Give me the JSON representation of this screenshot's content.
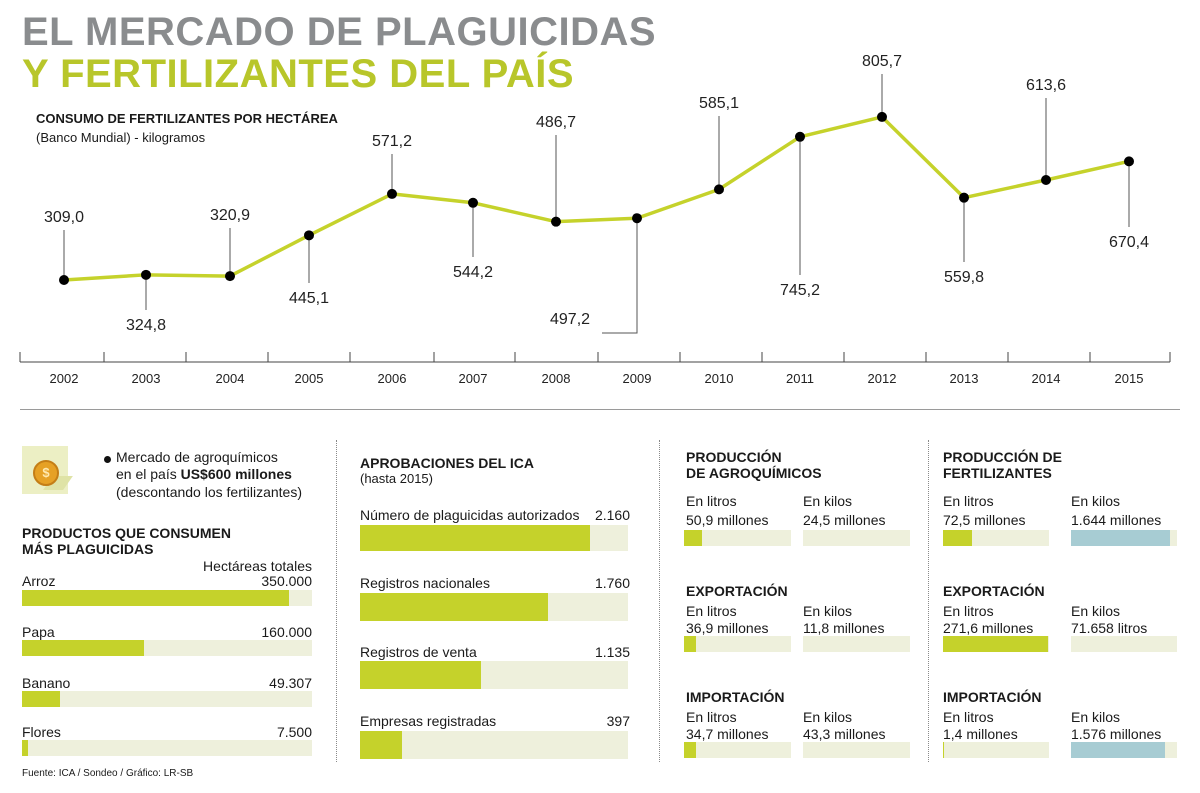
{
  "title_line1": "EL MERCADO DE PLAGUICIDAS",
  "title_line2": "Y FERTILIZANTES DEL PAÍS",
  "chart_data": {
    "type": "line",
    "title": "CONSUMO DE FERTILIZANTES POR HECTÁREA",
    "subtitle": "(Banco Mundial) - kilogramos",
    "x": [
      "2002",
      "2003",
      "2004",
      "2005",
      "2006",
      "2007",
      "2008",
      "2009",
      "2010",
      "2011",
      "2012",
      "2013",
      "2014",
      "2015"
    ],
    "values": [
      309.0,
      324.8,
      320.9,
      445.1,
      571.2,
      544.2,
      486.7,
      497.2,
      585.1,
      745.2,
      805.7,
      559.8,
      613.6,
      670.4
    ],
    "labels": [
      "309,0",
      "324,8",
      "320,9",
      "445,1",
      "571,2",
      "544,2",
      "486,7",
      "497,2",
      "585,1",
      "745,2",
      "805,7",
      "559,8",
      "613,6",
      "670,4"
    ],
    "line_color": "#c5d22b",
    "point_color": "#000000"
  },
  "market": {
    "line1": "Mercado de agroquímicos",
    "line2_prefix": "en el país ",
    "line2_bold": "US$600 millones",
    "line3": "(descontando los fertilizantes)",
    "icon": "coin-icon"
  },
  "crops": {
    "title_line1": "PRODUCTOS QUE CONSUMEN",
    "title_line2": "MÁS PLAGUICIDAS",
    "column_header": "Hectáreas totales",
    "items": [
      {
        "name": "Arroz",
        "value_label": "350.000",
        "value": 350000
      },
      {
        "name": "Papa",
        "value_label": "160.000",
        "value": 160000
      },
      {
        "name": "Banano",
        "value_label": "49.307",
        "value": 49307
      },
      {
        "name": "Flores",
        "value_label": "7.500",
        "value": 7500
      }
    ]
  },
  "ica": {
    "title": "APROBACIONES DEL ICA",
    "subtitle": "(hasta 2015)",
    "items": [
      {
        "name": "Número de plaguicidas autorizados",
        "value_label": "2.160",
        "value": 2160
      },
      {
        "name": "Registros nacionales",
        "value_label": "1.760",
        "value": 1760
      },
      {
        "name": "Registros de venta",
        "value_label": "1.135",
        "value": 1135
      },
      {
        "name": "Empresas registradas",
        "value_label": "397",
        "value": 397
      }
    ]
  },
  "agro": {
    "title_line1": "PRODUCCIÓN",
    "title_line2": "DE AGROQUÍMICOS",
    "litros_label": "En litros",
    "kilos_label": "En kilos",
    "litros_value": "50,9 millones",
    "kilos_value": "24,5 millones",
    "litros_fill": 0.17,
    "kilos_fill": 0.0,
    "export_title": "EXPORTACIÓN",
    "export_litros_value": "36,9 millones",
    "export_kilos_value": "11,8 millones",
    "export_litros_fill": 0.11,
    "export_kilos_fill": 0.0,
    "import_title": "IMPORTACIÓN",
    "import_litros_value": "34,7 millones",
    "import_kilos_value": "43,3 millones",
    "import_litros_fill": 0.11,
    "import_kilos_fill": 0.0
  },
  "fert": {
    "title_line1": "PRODUCCIÓN DE",
    "title_line2": "FERTILIZANTES",
    "litros_label": "En litros",
    "kilos_label": "En kilos",
    "litros_value": "72,5 millones",
    "kilos_value": "1.644 millones",
    "litros_fill": 0.27,
    "kilos_fill": 0.93,
    "export_title": "EXPORTACIÓN",
    "export_litros_value": "271,6 millones",
    "export_kilos_value": "71.658 litros",
    "export_litros_fill": 0.99,
    "export_kilos_fill": 0.0,
    "import_title": "IMPORTACIÓN",
    "import_litros_value": "1,4 millones",
    "import_kilos_value": "1.576 millones",
    "import_litros_fill": 0.01,
    "import_kilos_fill": 0.89
  },
  "footer": "Fuente:  ICA / Sondeo  / Gráfico: LR-SB"
}
